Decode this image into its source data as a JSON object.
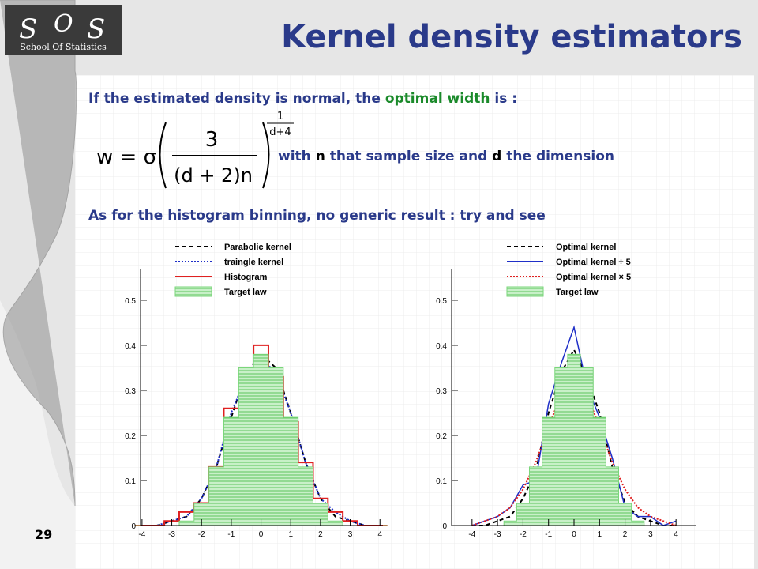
{
  "logo": {
    "letters": [
      "S",
      "O",
      "S"
    ],
    "subtitle": "School Of Statistics"
  },
  "title": "Kernel density estimators",
  "text": {
    "line1": [
      "If the estimated density is normal, the ",
      "optimal width",
      " is :"
    ],
    "formula": {
      "lhs": "w = σ",
      "numerator": "3",
      "denominator": "(d + 2)n",
      "exp_num": "1",
      "exp_den": "d+4"
    },
    "with": [
      "with ",
      "n",
      " that sample size and ",
      "d",
      " the dimension"
    ],
    "line3": "As for the histogram binning, no generic result : try and see"
  },
  "page_number": "29",
  "chart_data": [
    {
      "type": "line",
      "x": [
        -4,
        -3.5,
        -3,
        -2.5,
        -2,
        -1.5,
        -1,
        -0.5,
        0,
        0.5,
        1,
        1.5,
        2,
        2.5,
        3,
        3.5,
        4
      ],
      "xlim": [
        -4.05,
        4.1
      ],
      "ylim": [
        0,
        0.57
      ],
      "xticks": [
        -4,
        -3,
        -2,
        -1,
        0,
        1,
        2,
        3,
        4
      ],
      "yticks": [
        0,
        0.1,
        0.2,
        0.3,
        0.4,
        0.5
      ],
      "series": [
        {
          "name": "Parabolic kernel",
          "color": "#000000",
          "style": "dashed",
          "values": [
            0,
            0,
            0.01,
            0.02,
            0.06,
            0.13,
            0.24,
            0.34,
            0.38,
            0.35,
            0.25,
            0.14,
            0.06,
            0.02,
            0.01,
            0,
            0
          ]
        },
        {
          "name": "traingle kernel",
          "color": "#1f2fc8",
          "style": "dotted",
          "values": [
            0,
            0,
            0.01,
            0.02,
            0.06,
            0.13,
            0.25,
            0.33,
            0.37,
            0.34,
            0.25,
            0.14,
            0.06,
            0.03,
            0.01,
            0,
            0
          ]
        },
        {
          "name": "Histogram",
          "color": "#e02020",
          "style": "step",
          "values": [
            0,
            0,
            0.01,
            0.03,
            0.05,
            0.13,
            0.26,
            0.3,
            0.4,
            0.33,
            0.23,
            0.14,
            0.06,
            0.03,
            0.01,
            0,
            0
          ]
        },
        {
          "name": "Target law",
          "color": "#7ad67a",
          "style": "fill",
          "values": [
            0,
            0,
            0,
            0.01,
            0.05,
            0.13,
            0.24,
            0.35,
            0.38,
            0.35,
            0.24,
            0.13,
            0.05,
            0.01,
            0,
            0,
            0
          ]
        }
      ]
    },
    {
      "type": "line",
      "x": [
        -4,
        -3.5,
        -3,
        -2.5,
        -2,
        -1.5,
        -1,
        -0.5,
        0,
        0.5,
        1,
        1.5,
        2,
        2.5,
        3,
        3.5,
        4
      ],
      "xlim": [
        -4.8,
        4.8
      ],
      "ylim": [
        0,
        0.57
      ],
      "xticks": [
        -4,
        -3,
        -2,
        -1,
        0,
        1,
        2,
        3,
        4
      ],
      "yticks": [
        0,
        0.1,
        0.2,
        0.3,
        0.4,
        0.5
      ],
      "series": [
        {
          "name": "Optimal kernel",
          "color": "#000000",
          "style": "dashed",
          "values": [
            0,
            0,
            0.01,
            0.02,
            0.06,
            0.12,
            0.25,
            0.34,
            0.39,
            0.33,
            0.25,
            0.13,
            0.05,
            0.02,
            0.01,
            0,
            0
          ]
        },
        {
          "name": "Optimal kernel ÷ 5",
          "color": "#1f2fc8",
          "style": "solid",
          "values": [
            0,
            0.01,
            0.02,
            0.04,
            0.09,
            0.1,
            0.27,
            0.36,
            0.44,
            0.31,
            0.24,
            0.15,
            0.04,
            0.02,
            0.02,
            0,
            0.01
          ]
        },
        {
          "name": "Optimal kernel × 5",
          "color": "#e02020",
          "style": "dotted",
          "values": [
            0,
            0.01,
            0.02,
            0.04,
            0.08,
            0.14,
            0.22,
            0.29,
            0.31,
            0.29,
            0.22,
            0.14,
            0.08,
            0.04,
            0.02,
            0.01,
            0
          ]
        },
        {
          "name": "Target law",
          "color": "#7ad67a",
          "style": "fill",
          "values": [
            0,
            0,
            0,
            0.01,
            0.05,
            0.13,
            0.24,
            0.35,
            0.38,
            0.35,
            0.24,
            0.13,
            0.05,
            0.01,
            0,
            0,
            0
          ]
        }
      ]
    }
  ]
}
